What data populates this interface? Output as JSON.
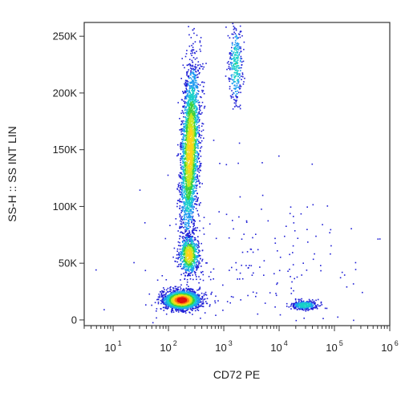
{
  "chart_data": {
    "type": "scatter",
    "subtype": "flow-cytometry-density-dot-plot",
    "xlabel": "CD72 PE",
    "ylabel": "SS-H :: SS INT LIN",
    "x_scale": "log",
    "x_range": [
      3,
      1000000
    ],
    "y_scale": "linear",
    "y_range": [
      -5000,
      262144
    ],
    "x_ticks": [
      {
        "value": 10,
        "base": "10",
        "exp": "1"
      },
      {
        "value": 100,
        "base": "10",
        "exp": "2"
      },
      {
        "value": 1000,
        "base": "10",
        "exp": "3"
      },
      {
        "value": 10000,
        "base": "10",
        "exp": "4"
      },
      {
        "value": 100000,
        "base": "10",
        "exp": "5"
      },
      {
        "value": 1000000,
        "base": "10",
        "exp": "6"
      }
    ],
    "y_ticks": [
      {
        "value": 0,
        "label": "0"
      },
      {
        "value": 50000,
        "label": "50K"
      },
      {
        "value": 100000,
        "label": "100K"
      },
      {
        "value": 150000,
        "label": "150K"
      },
      {
        "value": 200000,
        "label": "200K"
      },
      {
        "value": 250000,
        "label": "250K"
      }
    ],
    "density_colors": [
      "#1f1fd6",
      "#1f9bf0",
      "#18d0c8",
      "#3ccf3c",
      "#c8e620",
      "#ffd21a",
      "#ff7a10",
      "#e01010"
    ],
    "populations": [
      {
        "name": "lymphocyte cluster",
        "x_center": 170,
        "y_center": 18000,
        "x_spread_decades": 0.16,
        "y_spread": 4000,
        "points": 2200,
        "peak_density": "high"
      },
      {
        "name": "monocyte cluster",
        "x_center": 230,
        "y_center": 58000,
        "x_spread_decades": 0.09,
        "y_spread": 8500,
        "points": 700,
        "peak_density": "medium"
      },
      {
        "name": "granulocyte streak",
        "x_center": 240,
        "y_center": 150000,
        "x_spread_decades": 0.08,
        "y_spread": 38000,
        "points": 2600,
        "peak_density": "medium",
        "tilt": 0.35
      },
      {
        "name": "high side-scatter bright cluster",
        "x_center": 1600,
        "y_center": 225000,
        "x_spread_decades": 0.06,
        "y_spread": 18000,
        "points": 300,
        "peak_density": "low"
      },
      {
        "name": "CD72 positive cluster",
        "x_center": 28000,
        "y_center": 13500,
        "x_spread_decades": 0.12,
        "y_spread": 2000,
        "points": 320,
        "peak_density": "low"
      },
      {
        "name": "debris / scatter",
        "x_center": 3000,
        "y_center": 40000,
        "x_spread_decades": 1.0,
        "y_spread": 40000,
        "points": 220,
        "peak_density": "sparse"
      }
    ],
    "grid": false,
    "legend": "none"
  }
}
